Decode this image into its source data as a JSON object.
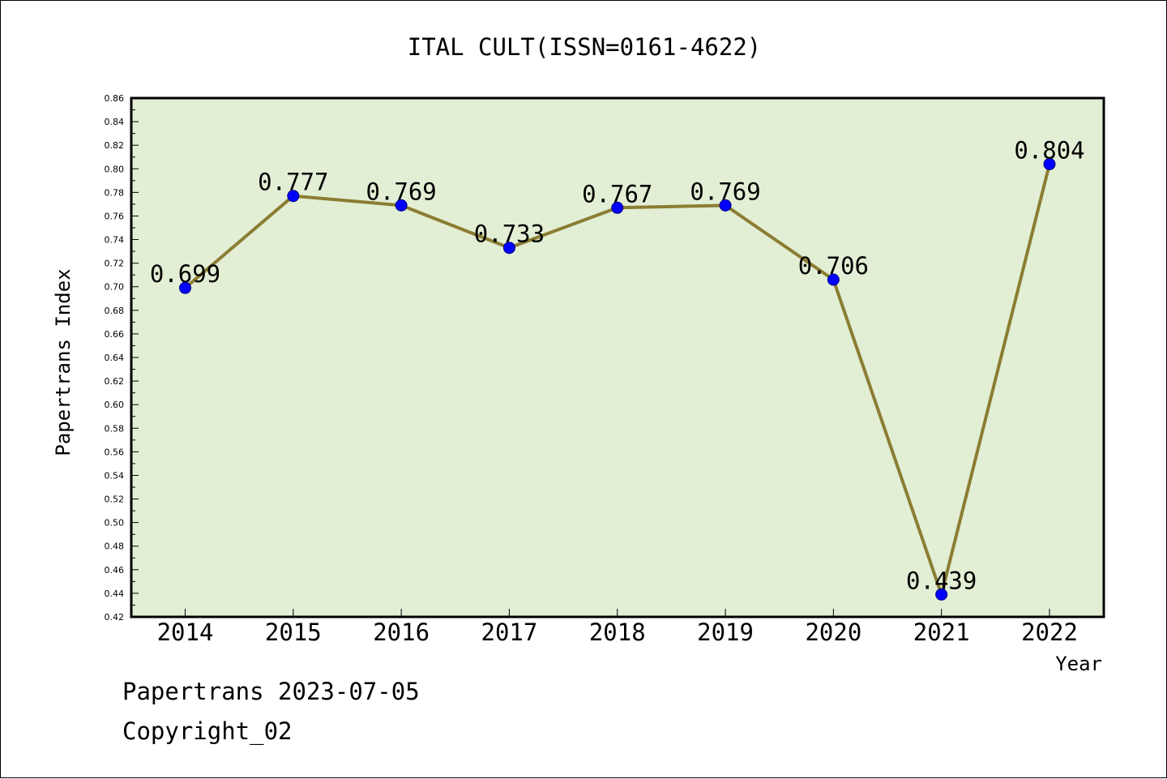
{
  "chart_data": {
    "type": "line",
    "title": "ITAL CULT(ISSN=0161-4622)",
    "xlabel": "Year",
    "ylabel": "Papertrans Index",
    "categories": [
      "2014",
      "2015",
      "2016",
      "2017",
      "2018",
      "2019",
      "2020",
      "2021",
      "2022"
    ],
    "series": [
      {
        "values": [
          0.699,
          0.777,
          0.769,
          0.733,
          0.767,
          0.769,
          0.706,
          0.439,
          0.804
        ],
        "data_labels": [
          "0.699",
          "0.777",
          "0.769",
          "0.733",
          "0.767",
          "0.769",
          "0.706",
          "0.439",
          "0.804"
        ]
      }
    ],
    "ylim": [
      0.42,
      0.86
    ],
    "y_ticks": [
      "0.42",
      "0.44",
      "0.46",
      "0.48",
      "0.50",
      "0.52",
      "0.54",
      "0.56",
      "0.58",
      "0.60",
      "0.62",
      "0.64",
      "0.66",
      "0.68",
      "0.70",
      "0.72",
      "0.74",
      "0.76",
      "0.78",
      "0.80",
      "0.82",
      "0.84",
      "0.86"
    ],
    "grid": false,
    "legend": "none"
  },
  "colors": {
    "plot_background": "#e2efd5",
    "line": "#8b7d32",
    "marker": "#0000ff",
    "axis": "#000000"
  },
  "footer": {
    "date_text": "Papertrans 2023-07-05",
    "copyright_text": "Copyright_02"
  }
}
